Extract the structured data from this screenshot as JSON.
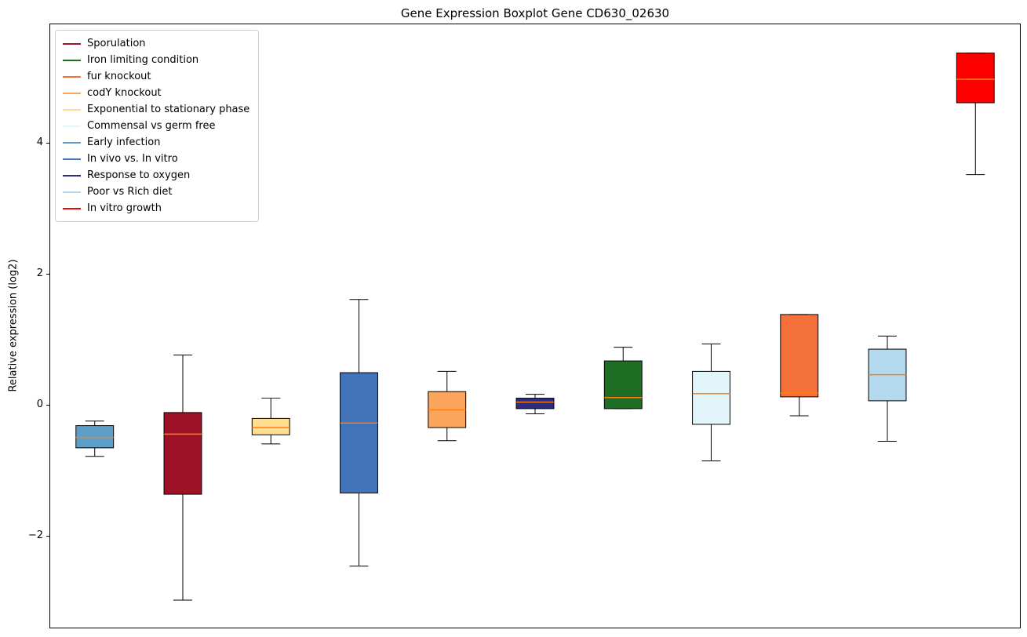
{
  "chart_data": {
    "type": "boxplot",
    "title": "Gene Expression Boxplot Gene CD630_02630",
    "ylabel": "Relative expression (log2)",
    "xlabel": "",
    "ylim": [
      -3.41,
      5.82
    ],
    "yticks": [
      -2,
      0,
      2,
      4
    ],
    "grid": false,
    "legend_position": "upper left",
    "median_color": "#ff7f0e",
    "box_edge_color": "#000000",
    "legend": [
      {
        "label": "Sporulation",
        "color": "#9E1228"
      },
      {
        "label": "Iron limiting condition",
        "color": "#1E6E23"
      },
      {
        "label": "fur knockout",
        "color": "#F4713B"
      },
      {
        "label": "codY knockout",
        "color": "#FBA55C"
      },
      {
        "label": "Exponential to stationary phase",
        "color": "#FFDE91"
      },
      {
        "label": "Commensal vs germ free",
        "color": "#E1F5FA"
      },
      {
        "label": "Early infection",
        "color": "#5B9EC9"
      },
      {
        "label": "In vivo vs. In vitro",
        "color": "#4272B8"
      },
      {
        "label": "Response to oxygen",
        "color": "#2C2C85"
      },
      {
        "label": "Poor vs Rich diet",
        "color": "#B5D9EE"
      },
      {
        "label": "In vitro growth",
        "color": "#FF0000"
      }
    ],
    "boxes": [
      {
        "condition": "Early infection",
        "color": "#5B9EC9",
        "whislo": -0.79,
        "q1": -0.66,
        "med": -0.5,
        "q3": -0.32,
        "whishi": -0.25
      },
      {
        "condition": "Sporulation",
        "color": "#9E1228",
        "whislo": -2.99,
        "q1": -1.37,
        "med": -0.45,
        "q3": -0.12,
        "whishi": 0.76
      },
      {
        "condition": "Exponential to stationary phase",
        "color": "#FFDE91",
        "whislo": -0.6,
        "q1": -0.46,
        "med": -0.35,
        "q3": -0.21,
        "whishi": 0.1
      },
      {
        "condition": "In vivo vs. In vitro",
        "color": "#4272B8",
        "whislo": -2.47,
        "q1": -1.35,
        "med": -0.28,
        "q3": 0.49,
        "whishi": 1.61
      },
      {
        "condition": "codY knockout",
        "color": "#FBA55C",
        "whislo": -0.55,
        "q1": -0.35,
        "med": -0.08,
        "q3": 0.2,
        "whishi": 0.51
      },
      {
        "condition": "Response to oxygen",
        "color": "#2C2C85",
        "whislo": -0.14,
        "q1": -0.06,
        "med": 0.04,
        "q3": 0.1,
        "whishi": 0.16
      },
      {
        "condition": "Iron limiting condition",
        "color": "#1E6E23",
        "whislo": -0.06,
        "q1": -0.06,
        "med": 0.11,
        "q3": 0.67,
        "whishi": 0.88
      },
      {
        "condition": "Commensal vs germ free",
        "color": "#E1F5FA",
        "whislo": -0.86,
        "q1": -0.3,
        "med": 0.17,
        "q3": 0.51,
        "whishi": 0.93
      },
      {
        "condition": "fur knockout",
        "color": "#F4713B",
        "whislo": -0.17,
        "q1": 0.12,
        "med": 0.18,
        "q3": 1.38,
        "whishi": 1.38
      },
      {
        "condition": "Poor vs Rich diet",
        "color": "#B5D9EE",
        "whislo": -0.56,
        "q1": 0.06,
        "med": 0.46,
        "q3": 0.85,
        "whishi": 1.05
      },
      {
        "condition": "In vitro growth",
        "color": "#FF0000",
        "whislo": 3.52,
        "q1": 4.62,
        "med": 4.98,
        "q3": 5.38,
        "whishi": 5.38
      }
    ]
  }
}
